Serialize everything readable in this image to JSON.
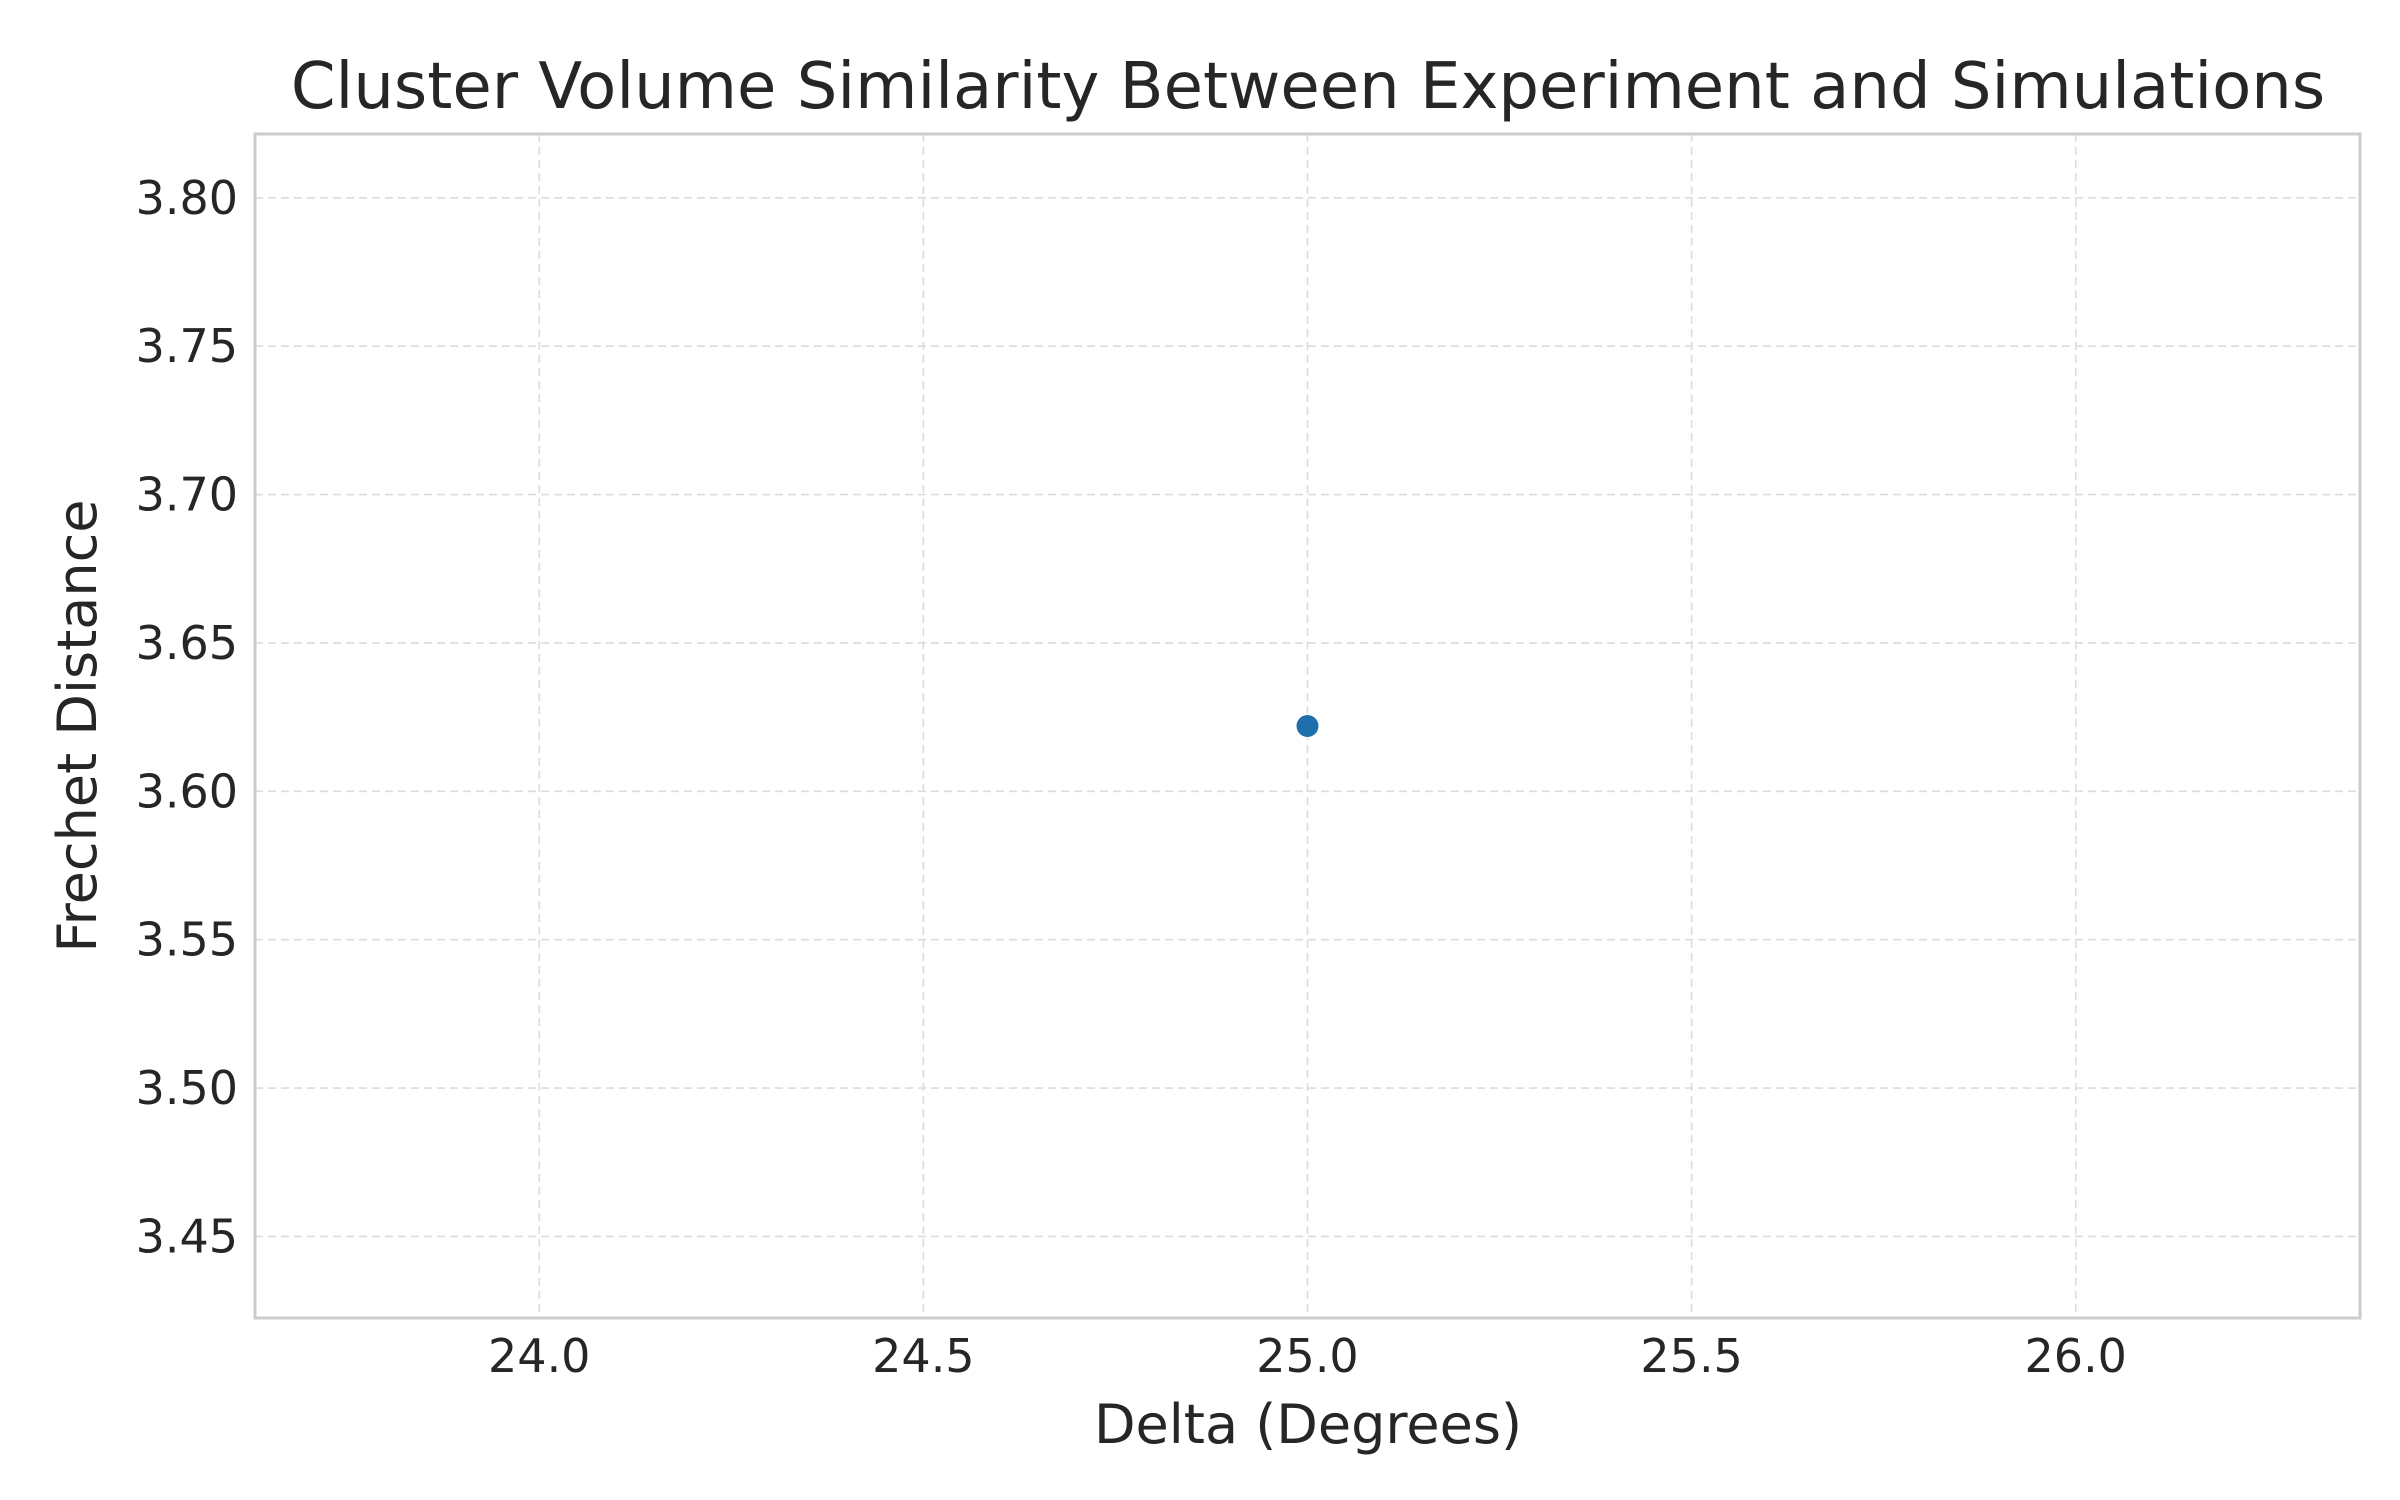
{
  "chart_data": {
    "type": "scatter",
    "title": "Cluster Volume Similarity Between Experiment and Simulations",
    "xlabel": "Delta (Degrees)",
    "ylabel": "Frechet Distance",
    "xlim": [
      23.63,
      26.37
    ],
    "ylim": [
      3.4225,
      3.8215
    ],
    "xticks": [
      24.0,
      24.5,
      25.0,
      25.5,
      26.0
    ],
    "xtick_labels": [
      "24.0",
      "24.5",
      "25.0",
      "25.5",
      "26.0"
    ],
    "yticks": [
      3.45,
      3.5,
      3.55,
      3.6,
      3.65,
      3.7,
      3.75,
      3.8
    ],
    "ytick_labels": [
      "3.45",
      "3.50",
      "3.55",
      "3.60",
      "3.65",
      "3.70",
      "3.75",
      "3.80"
    ],
    "grid": true,
    "series": [
      {
        "points": [
          {
            "x": 25.0,
            "y": 3.622
          }
        ],
        "color": "#1f6fad"
      }
    ]
  }
}
